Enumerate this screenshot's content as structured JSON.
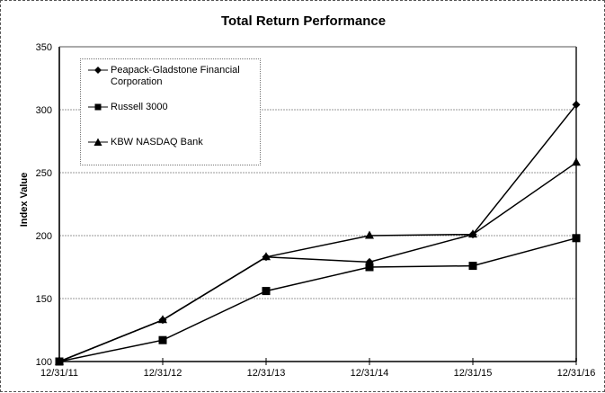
{
  "chart_data": {
    "type": "line",
    "title": "Total Return Performance",
    "xlabel": "",
    "ylabel": "Index Value",
    "categories": [
      "12/31/11",
      "12/31/12",
      "12/31/13",
      "12/31/14",
      "12/31/15",
      "12/31/16"
    ],
    "ylim": [
      100,
      350
    ],
    "yticks": [
      100,
      150,
      200,
      250,
      300,
      350
    ],
    "grid": true,
    "legend_position": "top-left",
    "series": [
      {
        "name": "Peapack-Gladstone Financial Corporation",
        "marker": "diamond",
        "values": [
          100,
          133,
          183,
          179,
          201,
          304
        ]
      },
      {
        "name": "Russell 3000",
        "marker": "square",
        "values": [
          100,
          117,
          156,
          175,
          176,
          198
        ]
      },
      {
        "name": "KBW NASDAQ Bank",
        "marker": "triangle",
        "values": [
          100,
          133,
          183,
          200,
          201,
          258
        ]
      }
    ]
  }
}
